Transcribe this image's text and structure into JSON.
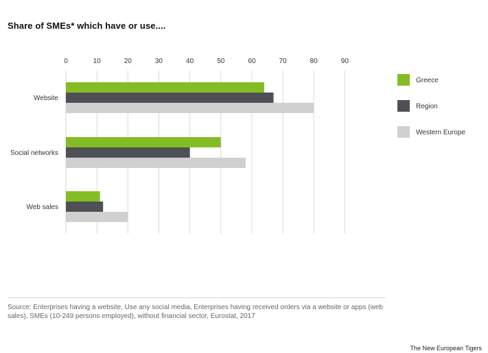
{
  "chart_data": {
    "type": "bar",
    "orientation": "horizontal",
    "title": "Share of SMEs* which have or use....",
    "categories": [
      "Website",
      "Social networks",
      "Web sales"
    ],
    "series": [
      {
        "name": "Greece",
        "color": "#84bd23",
        "values": [
          64,
          50,
          11
        ]
      },
      {
        "name": "Region",
        "color": "#4f5055",
        "values": [
          67,
          40,
          12
        ]
      },
      {
        "name": "Western Europe",
        "color": "#d0d0d0",
        "values": [
          80,
          58,
          20
        ]
      }
    ],
    "xlim": [
      0,
      90
    ],
    "xticks": [
      0,
      10,
      20,
      30,
      40,
      50,
      60,
      70,
      80,
      90
    ],
    "grid": "vertical",
    "legend_position": "right"
  },
  "source_text": "Source: Enterprises having a website, Use any social media, Enterprises having received orders via a website or apps (web sales), SMEs (10-249 persons employed), without financial sector, Eurostat, 2017",
  "brand": "The New European Tigers"
}
